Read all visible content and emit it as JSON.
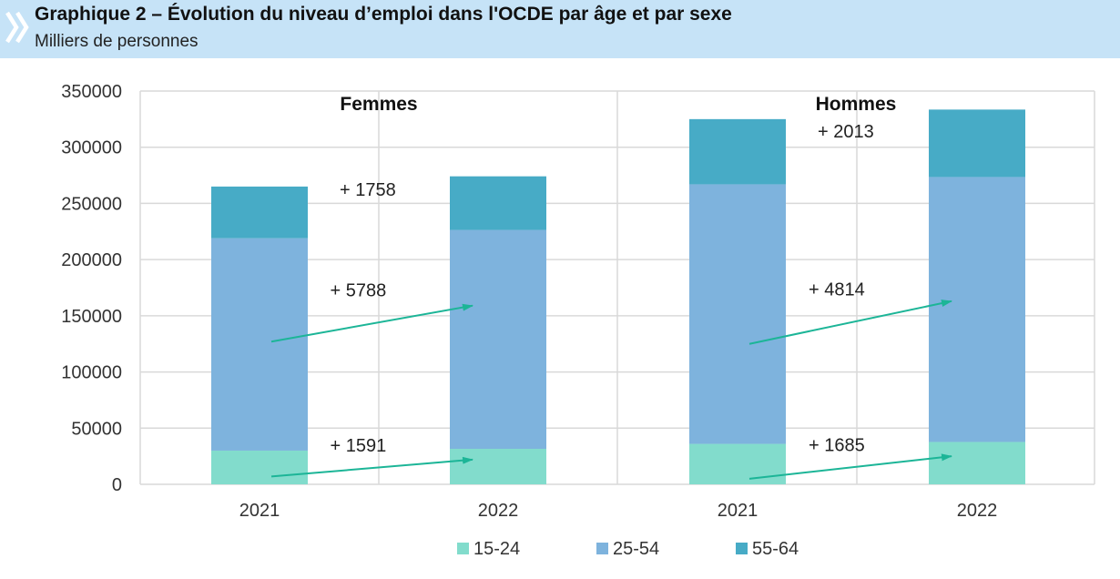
{
  "header": {
    "title": "Graphique 2 – Évolution du niveau d’emploi dans l'OCDE par âge et par sexe",
    "subtitle": "Milliers de personnes"
  },
  "colors": {
    "header_bg": "#c6e3f7",
    "chevron": "#ffffff",
    "s15_24": "#82dccc",
    "s25_54": "#7eb3dd",
    "s55_64": "#47abc6",
    "arrow": "#1cb597",
    "grid": "#d9d9d9"
  },
  "chart_data": {
    "type": "bar",
    "stacked": true,
    "ylim": [
      0,
      350000
    ],
    "yticks": [
      0,
      50000,
      100000,
      150000,
      200000,
      250000,
      300000,
      350000
    ],
    "grid": true,
    "legend_position": "bottom",
    "panels": [
      "Femmes",
      "Hommes"
    ],
    "categories": [
      "2021",
      "2022",
      "2021",
      "2022"
    ],
    "category_panel": [
      0,
      0,
      1,
      1
    ],
    "series": [
      {
        "name": "15-24",
        "color": "#82dccc",
        "values": [
          30000,
          31600,
          36000,
          37700
        ]
      },
      {
        "name": "25-54",
        "color": "#7eb3dd",
        "values": [
          189000,
          194800,
          231000,
          235800
        ]
      },
      {
        "name": "55-64",
        "color": "#47abc6",
        "values": [
          46000,
          47700,
          58000,
          60000
        ]
      }
    ],
    "annotations": [
      {
        "text": "+ 1758",
        "panel": 0,
        "series": "55-64",
        "arrow": false
      },
      {
        "text": "+ 5788",
        "panel": 0,
        "series": "25-54",
        "arrow": true,
        "from": 127000,
        "to": 159000
      },
      {
        "text": "+ 1591",
        "panel": 0,
        "series": "15-24",
        "arrow": true,
        "from": 7000,
        "to": 22000
      },
      {
        "text": "+ 2013",
        "panel": 1,
        "series": "55-64",
        "arrow": false
      },
      {
        "text": "+ 4814",
        "panel": 1,
        "series": "25-54",
        "arrow": true,
        "from": 125000,
        "to": 163000
      },
      {
        "text": "+ 1685",
        "panel": 1,
        "series": "15-24",
        "arrow": true,
        "from": 5000,
        "to": 25000
      }
    ]
  }
}
